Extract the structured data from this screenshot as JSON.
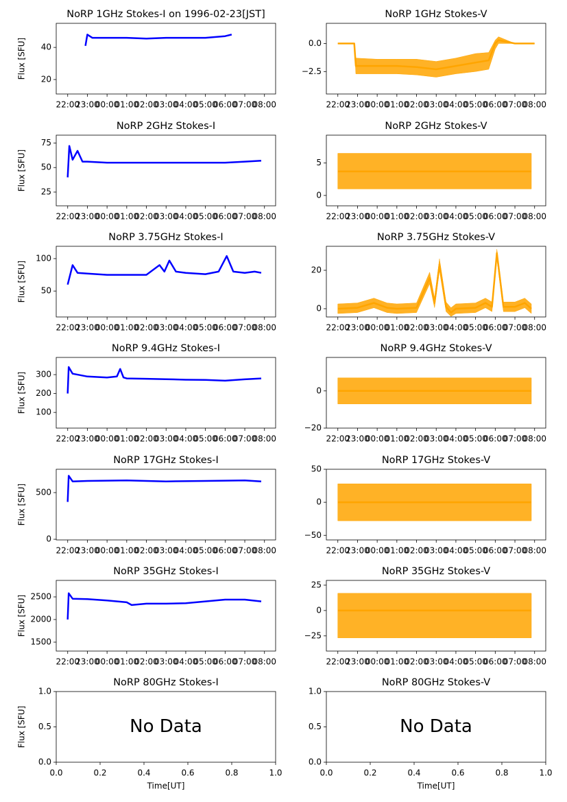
{
  "chart_data": [
    {
      "type": "line",
      "title": "NoRP 1GHz Stokes-I on 1996-02-23[JST]",
      "ylabel": "Flux [SFU]",
      "x": [
        "22:54",
        "23:00",
        "23:15",
        "00:00",
        "01:00",
        "02:00",
        "03:00",
        "04:00",
        "05:00",
        "06:00",
        "06:20"
      ],
      "series": [
        {
          "color": "#0000ff",
          "values": [
            41,
            48,
            46,
            46,
            46,
            45.5,
            46,
            46,
            46,
            47,
            48
          ]
        }
      ],
      "xlim": [
        "21:25",
        "08:34"
      ],
      "xticks": [
        "22:00",
        "23:00",
        "00:00",
        "01:00",
        "02:00",
        "03:00",
        "04:00",
        "05:00",
        "06:00",
        "07:00",
        "08:00"
      ],
      "ylim": [
        11,
        55
      ],
      "yticks": [
        20,
        40
      ]
    },
    {
      "type": "line",
      "title": "NoRP 1GHz Stokes-V",
      "x": [
        "22:00",
        "22:50",
        "22:55",
        "00:00",
        "01:00",
        "02:00",
        "03:00",
        "04:00",
        "05:00",
        "05:40",
        "06:00",
        "06:10",
        "07:00",
        "08:00"
      ],
      "series": [
        {
          "color": "#ffa500",
          "values": [
            0,
            0,
            -2.0,
            -2.0,
            -2.0,
            -2.1,
            -2.3,
            -2.0,
            -1.7,
            -1.5,
            0,
            0.3,
            0,
            0
          ],
          "low": [
            0,
            0,
            -2.7,
            -2.7,
            -2.7,
            -2.8,
            -3.0,
            -2.7,
            -2.5,
            -2.3,
            -0.5,
            0,
            0,
            0
          ],
          "high": [
            0,
            0,
            -1.3,
            -1.4,
            -1.4,
            -1.4,
            -1.6,
            -1.3,
            -0.9,
            -0.8,
            0.3,
            0.6,
            0,
            0
          ]
        }
      ],
      "xlim": [
        "21:25",
        "08:34"
      ],
      "xticks": [
        "22:00",
        "23:00",
        "00:00",
        "01:00",
        "02:00",
        "03:00",
        "04:00",
        "05:00",
        "06:00",
        "07:00",
        "08:00"
      ],
      "ylim": [
        -4.5,
        1.8
      ],
      "yticks": [
        {
          "value": 0,
          "label": "0.0"
        },
        {
          "value": -2.5,
          "label": "−2.5"
        }
      ]
    },
    {
      "type": "line",
      "title": "NoRP 2GHz Stokes-I",
      "ylabel": "Flux [SFU]",
      "x": [
        "22:00",
        "22:05",
        "22:15",
        "22:30",
        "22:45",
        "23:00",
        "00:00",
        "01:00",
        "02:00",
        "03:00",
        "04:00",
        "05:00",
        "06:00",
        "07:00",
        "07:50"
      ],
      "series": [
        {
          "color": "#0000ff",
          "values": [
            40,
            72,
            58,
            67,
            56,
            56,
            55,
            55,
            55,
            55,
            55,
            55,
            55,
            56,
            57
          ]
        }
      ],
      "xlim": [
        "21:25",
        "08:34"
      ],
      "xticks": [
        "22:00",
        "23:00",
        "00:00",
        "01:00",
        "02:00",
        "03:00",
        "04:00",
        "05:00",
        "06:00",
        "07:00",
        "08:00"
      ],
      "ylim": [
        11,
        83
      ],
      "yticks": [
        25,
        50,
        75
      ]
    },
    {
      "type": "line",
      "title": "NoRP 2GHz Stokes-V",
      "x": [
        "22:00",
        "23:00",
        "00:00",
        "01:00",
        "02:00",
        "03:00",
        "04:00",
        "05:00",
        "06:00",
        "07:00",
        "07:50"
      ],
      "series": [
        {
          "color": "#ffa500",
          "values": [
            3.7,
            3.7,
            3.7,
            3.7,
            3.7,
            3.7,
            3.7,
            3.7,
            3.7,
            3.7,
            3.7
          ],
          "low": [
            1,
            1,
            1,
            1,
            1,
            1,
            1,
            1,
            1,
            1,
            1
          ],
          "high": [
            6.5,
            6.5,
            6.5,
            6.5,
            6.5,
            6.5,
            6.5,
            6.5,
            6.5,
            6.5,
            6.5
          ]
        }
      ],
      "xlim": [
        "21:25",
        "08:34"
      ],
      "xticks": [
        "22:00",
        "23:00",
        "00:00",
        "01:00",
        "02:00",
        "03:00",
        "04:00",
        "05:00",
        "06:00",
        "07:00",
        "08:00"
      ],
      "ylim": [
        -1.6,
        9.3
      ],
      "yticks": [
        0,
        5
      ]
    },
    {
      "type": "line",
      "title": "NoRP 3.75GHz Stokes-I",
      "ylabel": "Flux [SFU]",
      "x": [
        "22:00",
        "22:15",
        "22:30",
        "23:00",
        "00:00",
        "01:00",
        "02:00",
        "02:40",
        "02:55",
        "03:10",
        "03:30",
        "04:00",
        "05:00",
        "05:40",
        "06:05",
        "06:25",
        "07:00",
        "07:30",
        "07:50"
      ],
      "series": [
        {
          "color": "#0000ff",
          "values": [
            60,
            90,
            78,
            77,
            75,
            75,
            75,
            90,
            80,
            97,
            80,
            78,
            76,
            80,
            104,
            80,
            78,
            80,
            78
          ]
        }
      ],
      "xlim": [
        "21:25",
        "08:34"
      ],
      "xticks": [
        "22:00",
        "23:00",
        "00:00",
        "01:00",
        "02:00",
        "03:00",
        "04:00",
        "05:00",
        "06:00",
        "07:00",
        "08:00"
      ],
      "ylim": [
        10,
        119
      ],
      "yticks": [
        50,
        100
      ]
    },
    {
      "type": "line",
      "title": "NoRP 3.75GHz Stokes-V",
      "x": [
        "22:00",
        "23:00",
        "23:50",
        "00:30",
        "01:00",
        "02:00",
        "02:40",
        "02:55",
        "03:10",
        "03:30",
        "03:45",
        "04:00",
        "05:00",
        "05:30",
        "05:50",
        "06:05",
        "06:25",
        "07:00",
        "07:30",
        "07:50"
      ],
      "series": [
        {
          "color": "#ffa500",
          "values": [
            0,
            0.5,
            3,
            0.5,
            0,
            0.5,
            16,
            3,
            23,
            1,
            -2,
            0,
            0.5,
            3,
            1,
            29,
            1,
            1,
            3,
            0
          ],
          "low": [
            -2.5,
            -2,
            0.5,
            -2,
            -2.5,
            -2,
            13,
            0.5,
            20,
            -1.5,
            -4,
            -2.5,
            -2,
            0.5,
            -1.5,
            26,
            -1.5,
            -1.5,
            0.5,
            -2.5
          ],
          "high": [
            2.5,
            3,
            5.5,
            3,
            2.5,
            3,
            19,
            5.5,
            26,
            3.5,
            0.5,
            2.5,
            3,
            5.5,
            3.5,
            31,
            3.5,
            3.5,
            5.5,
            2.5
          ]
        }
      ],
      "xlim": [
        "21:25",
        "08:34"
      ],
      "xticks": [
        "22:00",
        "23:00",
        "00:00",
        "01:00",
        "02:00",
        "03:00",
        "04:00",
        "05:00",
        "06:00",
        "07:00",
        "08:00"
      ],
      "ylim": [
        -4.3,
        32.5
      ],
      "yticks": [
        0,
        20
      ]
    },
    {
      "type": "line",
      "title": "NoRP 9.4GHz Stokes-I",
      "ylabel": "Flux [SFU]",
      "x": [
        "22:00",
        "22:03",
        "22:15",
        "23:00",
        "00:00",
        "00:30",
        "00:40",
        "00:50",
        "01:00",
        "02:00",
        "03:00",
        "04:00",
        "05:00",
        "06:00",
        "07:00",
        "07:50"
      ],
      "series": [
        {
          "color": "#0000ff",
          "values": [
            200,
            340,
            305,
            290,
            285,
            290,
            330,
            285,
            280,
            278,
            276,
            273,
            272,
            268,
            275,
            280
          ]
        }
      ],
      "xlim": [
        "21:25",
        "08:34"
      ],
      "xticks": [
        "22:00",
        "23:00",
        "00:00",
        "01:00",
        "02:00",
        "03:00",
        "04:00",
        "05:00",
        "06:00",
        "07:00",
        "08:00"
      ],
      "ylim": [
        17,
        391
      ],
      "yticks": [
        100,
        200,
        300
      ]
    },
    {
      "type": "line",
      "title": "NoRP 9.4GHz Stokes-V",
      "x": [
        "22:00",
        "23:00",
        "00:00",
        "01:00",
        "02:00",
        "03:00",
        "04:00",
        "05:00",
        "06:00",
        "07:00",
        "07:50"
      ],
      "series": [
        {
          "color": "#ffa500",
          "values": [
            0,
            0,
            0,
            0,
            0,
            0,
            0,
            0,
            0,
            0,
            0
          ],
          "low": [
            -7,
            -7,
            -7,
            -7,
            -7,
            -7,
            -7,
            -7,
            -7,
            -7,
            -7
          ],
          "high": [
            7,
            7,
            7,
            7,
            7,
            7,
            7,
            7,
            7,
            7,
            7
          ]
        }
      ],
      "xlim": [
        "21:25",
        "08:34"
      ],
      "xticks": [
        "22:00",
        "23:00",
        "00:00",
        "01:00",
        "02:00",
        "03:00",
        "04:00",
        "05:00",
        "06:00",
        "07:00",
        "08:00"
      ],
      "ylim": [
        -20,
        18
      ],
      "yticks": [
        {
          "value": -20,
          "label": "−20"
        },
        0
      ]
    },
    {
      "type": "line",
      "title": "NoRP 17GHz Stokes-I",
      "ylabel": "Flux [SFU]",
      "x": [
        "22:00",
        "22:03",
        "22:15",
        "23:00",
        "01:00",
        "03:00",
        "05:00",
        "07:00",
        "07:50"
      ],
      "series": [
        {
          "color": "#0000ff",
          "values": [
            400,
            680,
            620,
            625,
            630,
            620,
            625,
            630,
            620
          ]
        }
      ],
      "xlim": [
        "21:25",
        "08:34"
      ],
      "xticks": [
        "22:00",
        "23:00",
        "00:00",
        "01:00",
        "02:00",
        "03:00",
        "04:00",
        "05:00",
        "06:00",
        "07:00",
        "08:00"
      ],
      "ylim": [
        -7,
        750
      ],
      "yticks": [
        0,
        500
      ]
    },
    {
      "type": "line",
      "title": "NoRP 17GHz Stokes-V",
      "x": [
        "22:00",
        "23:00",
        "00:00",
        "01:00",
        "02:00",
        "03:00",
        "04:00",
        "05:00",
        "06:00",
        "07:00",
        "07:50"
      ],
      "series": [
        {
          "color": "#ffa500",
          "values": [
            0,
            0,
            0,
            0,
            0,
            0,
            0,
            0,
            0,
            0,
            0
          ],
          "low": [
            -28,
            -28,
            -28,
            -28,
            -28,
            -28,
            -28,
            -28,
            -28,
            -28,
            -28
          ],
          "high": [
            28,
            28,
            28,
            28,
            28,
            28,
            28,
            28,
            28,
            28,
            28
          ]
        }
      ],
      "xlim": [
        "21:25",
        "08:34"
      ],
      "xticks": [
        "22:00",
        "23:00",
        "00:00",
        "01:00",
        "02:00",
        "03:00",
        "04:00",
        "05:00",
        "06:00",
        "07:00",
        "08:00"
      ],
      "ylim": [
        -57,
        50
      ],
      "yticks": [
        {
          "value": -50,
          "label": "−50"
        },
        0,
        50
      ]
    },
    {
      "type": "line",
      "title": "NoRP 35GHz Stokes-I",
      "ylabel": "Flux [SFU]",
      "x": [
        "22:00",
        "22:03",
        "22:15",
        "23:00",
        "00:00",
        "01:00",
        "01:15",
        "02:00",
        "03:00",
        "04:00",
        "05:00",
        "06:00",
        "07:00",
        "07:50"
      ],
      "series": [
        {
          "color": "#0000ff",
          "values": [
            2000,
            2580,
            2460,
            2450,
            2420,
            2380,
            2320,
            2350,
            2350,
            2360,
            2400,
            2440,
            2440,
            2400
          ]
        }
      ],
      "xlim": [
        "21:25",
        "08:34"
      ],
      "xticks": [
        "22:00",
        "23:00",
        "00:00",
        "01:00",
        "02:00",
        "03:00",
        "04:00",
        "05:00",
        "06:00",
        "07:00",
        "08:00"
      ],
      "ylim": [
        1303,
        2864
      ],
      "yticks": [
        1500,
        2000,
        2500
      ]
    },
    {
      "type": "line",
      "title": "NoRP 35GHz Stokes-V",
      "x": [
        "22:00",
        "23:00",
        "00:00",
        "01:00",
        "02:00",
        "03:00",
        "04:00",
        "05:00",
        "06:00",
        "07:00",
        "07:50"
      ],
      "series": [
        {
          "color": "#ffa500",
          "values": [
            0,
            0,
            0,
            0,
            0,
            0,
            0,
            0,
            0,
            0,
            0
          ],
          "low": [
            -27,
            -27,
            -27,
            -27,
            -27,
            -27,
            -27,
            -27,
            -27,
            -27,
            -27
          ],
          "high": [
            17,
            17,
            17,
            17,
            17,
            17,
            17,
            17,
            17,
            17,
            17
          ]
        }
      ],
      "xlim": [
        "21:25",
        "08:34"
      ],
      "xticks": [
        "22:00",
        "23:00",
        "00:00",
        "01:00",
        "02:00",
        "03:00",
        "04:00",
        "05:00",
        "06:00",
        "07:00",
        "08:00"
      ],
      "ylim": [
        -40,
        29.7
      ],
      "yticks": [
        {
          "value": -25,
          "label": "−25"
        },
        0,
        25
      ]
    },
    {
      "type": "line",
      "title": "NoRP 80GHz Stokes-I",
      "ylabel": "Flux [SFU]",
      "xlabel": "Time[UT]",
      "annotation": "No Data",
      "xlim": [
        0,
        1
      ],
      "xticks": [
        {
          "value": 0,
          "label": "0.0"
        },
        {
          "value": 0.2,
          "label": "0.2"
        },
        {
          "value": 0.4,
          "label": "0.4"
        },
        {
          "value": 0.6,
          "label": "0.6"
        },
        {
          "value": 0.8,
          "label": "0.8"
        },
        {
          "value": 1,
          "label": "1.0"
        }
      ],
      "ylim": [
        0,
        1
      ],
      "yticks": [
        {
          "value": 0,
          "label": "0.0"
        },
        {
          "value": 0.5,
          "label": "0.5"
        },
        {
          "value": 1,
          "label": "1.0"
        }
      ]
    },
    {
      "type": "line",
      "title": "NoRP 80GHz Stokes-V",
      "xlabel": "Time[UT]",
      "annotation": "No Data",
      "xlim": [
        0,
        1
      ],
      "xticks": [
        {
          "value": 0,
          "label": "0.0"
        },
        {
          "value": 0.2,
          "label": "0.2"
        },
        {
          "value": 0.4,
          "label": "0.4"
        },
        {
          "value": 0.6,
          "label": "0.6"
        },
        {
          "value": 0.8,
          "label": "0.8"
        },
        {
          "value": 1,
          "label": "1.0"
        }
      ],
      "ylim": [
        0,
        1
      ],
      "yticks": [
        {
          "value": 0,
          "label": "0.0"
        },
        {
          "value": 0.5,
          "label": "0.5"
        },
        {
          "value": 1,
          "label": "1.0"
        }
      ]
    }
  ]
}
